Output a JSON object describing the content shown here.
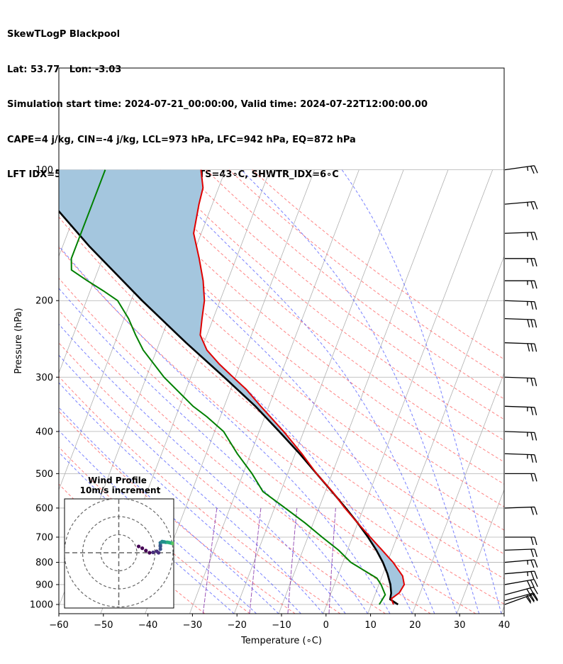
{
  "header": {
    "lines": [
      "SkewTLogP Blackpool",
      "Lat: 53.77   Lon: -3.03",
      "Simulation start time: 2024-07-21_00:00:00, Valid time: 2024-07-22T12:00:00.00",
      "CAPE=4 j/kg, CIN=-4 j/kg, LCL=973 hPa, LFC=942 hPa, EQ=872 hPa",
      "LFT IDX=5∘C, K IDX=14∘C, TOTAL TOTS=43∘C, SHWTR_IDX=6∘C"
    ]
  },
  "chart_data": [
    {
      "type": "line",
      "subtype": "skew-t log-p",
      "xlabel": "Temperature (∘C)",
      "ylabel": "Pressure (hPa)",
      "xlim": [
        -60,
        40
      ],
      "ylim": [
        1050,
        100
      ],
      "y_scale": "log",
      "x_ticks": [
        -60,
        -50,
        -40,
        -30,
        -20,
        -10,
        0,
        10,
        20,
        30,
        40
      ],
      "y_ticks": [
        1000,
        900,
        800,
        700,
        600,
        500,
        400,
        300,
        200,
        100
      ],
      "grid": true,
      "colors": {
        "temperature": "#e00000",
        "dewpoint": "#008000",
        "parcel": "#000000",
        "cape_fill": "#a4c6de",
        "dry_adiabats": "#ff5a5a",
        "moist_adiabats": "#3f4aff",
        "mixing_ratio": "#7a1fa2",
        "isotherms": "#b0b0b0"
      },
      "series": [
        {
          "role": "temperature",
          "p": [
            1000,
            970,
            940,
            900,
            860,
            800,
            750,
            700,
            650,
            600,
            550,
            500,
            450,
            400,
            350,
            320,
            300,
            280,
            260,
            240,
            220,
            200,
            180,
            160,
            140,
            120,
            110,
            100
          ],
          "t": [
            15.0,
            14.0,
            15.3,
            15.7,
            14.6,
            11.3,
            7.8,
            4.0,
            0.0,
            -4.2,
            -8.4,
            -13.5,
            -18.5,
            -24.5,
            -31.8,
            -36.5,
            -40.5,
            -44.7,
            -48.7,
            -51.5,
            -52.5,
            -53.5,
            -55.5,
            -58.3,
            -61.7,
            -63.0,
            -63.5,
            -65.5
          ]
        },
        {
          "role": "dewpoint",
          "p": [
            1000,
            980,
            950,
            900,
            870,
            800,
            750,
            700,
            650,
            600,
            550,
            500,
            450,
            400,
            370,
            350,
            300,
            260,
            240,
            220,
            200,
            190,
            180,
            170,
            160,
            140,
            120,
            100
          ],
          "t": [
            11.8,
            12.0,
            12.3,
            10.5,
            9.0,
            1.8,
            -2.0,
            -6.8,
            -11.8,
            -17.6,
            -24.0,
            -28.0,
            -33.0,
            -38.0,
            -43.0,
            -47.0,
            -56.0,
            -63.0,
            -66.0,
            -69.0,
            -73.0,
            -77.0,
            -81.5,
            -86.0,
            -87.0,
            -87.0,
            -87.0,
            -87.0
          ]
        },
        {
          "role": "parcel",
          "p": [
            1000,
            973,
            942,
            900,
            850,
            800,
            750,
            700,
            650,
            600,
            550,
            500,
            450,
            400,
            350,
            300,
            250,
            200,
            150,
            100
          ],
          "t": [
            16.0,
            13.8,
            13.5,
            12.6,
            11.0,
            9.0,
            6.5,
            3.5,
            0.0,
            -4.0,
            -8.5,
            -13.5,
            -19.0,
            -25.5,
            -33.0,
            -42.5,
            -54.0,
            -67.5,
            -84.0,
            -105.5
          ]
        }
      ],
      "wind_barbs": {
        "p": [
          1000,
          980,
          950,
          900,
          850,
          800,
          750,
          700,
          600,
          500,
          450,
          400,
          350,
          300,
          250,
          220,
          200,
          180,
          160,
          140,
          120,
          100
        ],
        "speed_kt": [
          30,
          30,
          30,
          30,
          25,
          25,
          20,
          20,
          20,
          20,
          25,
          25,
          25,
          25,
          30,
          30,
          25,
          25,
          25,
          25,
          25,
          25
        ],
        "direction_deg": [
          250,
          255,
          255,
          260,
          265,
          265,
          268,
          270,
          268,
          270,
          272,
          272,
          272,
          272,
          272,
          272,
          272,
          270,
          270,
          268,
          265,
          262
        ]
      }
    },
    {
      "type": "scatter",
      "subtype": "hodograph",
      "title": "Wind Profile",
      "subtitle": "10m/s increment",
      "ring_spacing": 10,
      "rings": 3,
      "u": [
        11,
        13,
        15,
        17,
        19,
        21,
        22,
        23,
        23,
        23,
        23,
        24,
        24,
        24,
        25,
        25,
        26,
        27,
        28,
        29,
        30,
        31,
        32,
        33,
        33,
        33,
        33
      ],
      "v": [
        3.5,
        2.5,
        1.2,
        0.0,
        0.2,
        0.8,
        0.0,
        2.0,
        3.5,
        4.2,
        5.5,
        6.0,
        6.2,
        6.0,
        6.0,
        6.0,
        5.8,
        5.8,
        5.6,
        5.4,
        5.2,
        5.0,
        5.0,
        5.0,
        4.8,
        4.8,
        4.8
      ],
      "colormap": "viridis"
    }
  ]
}
